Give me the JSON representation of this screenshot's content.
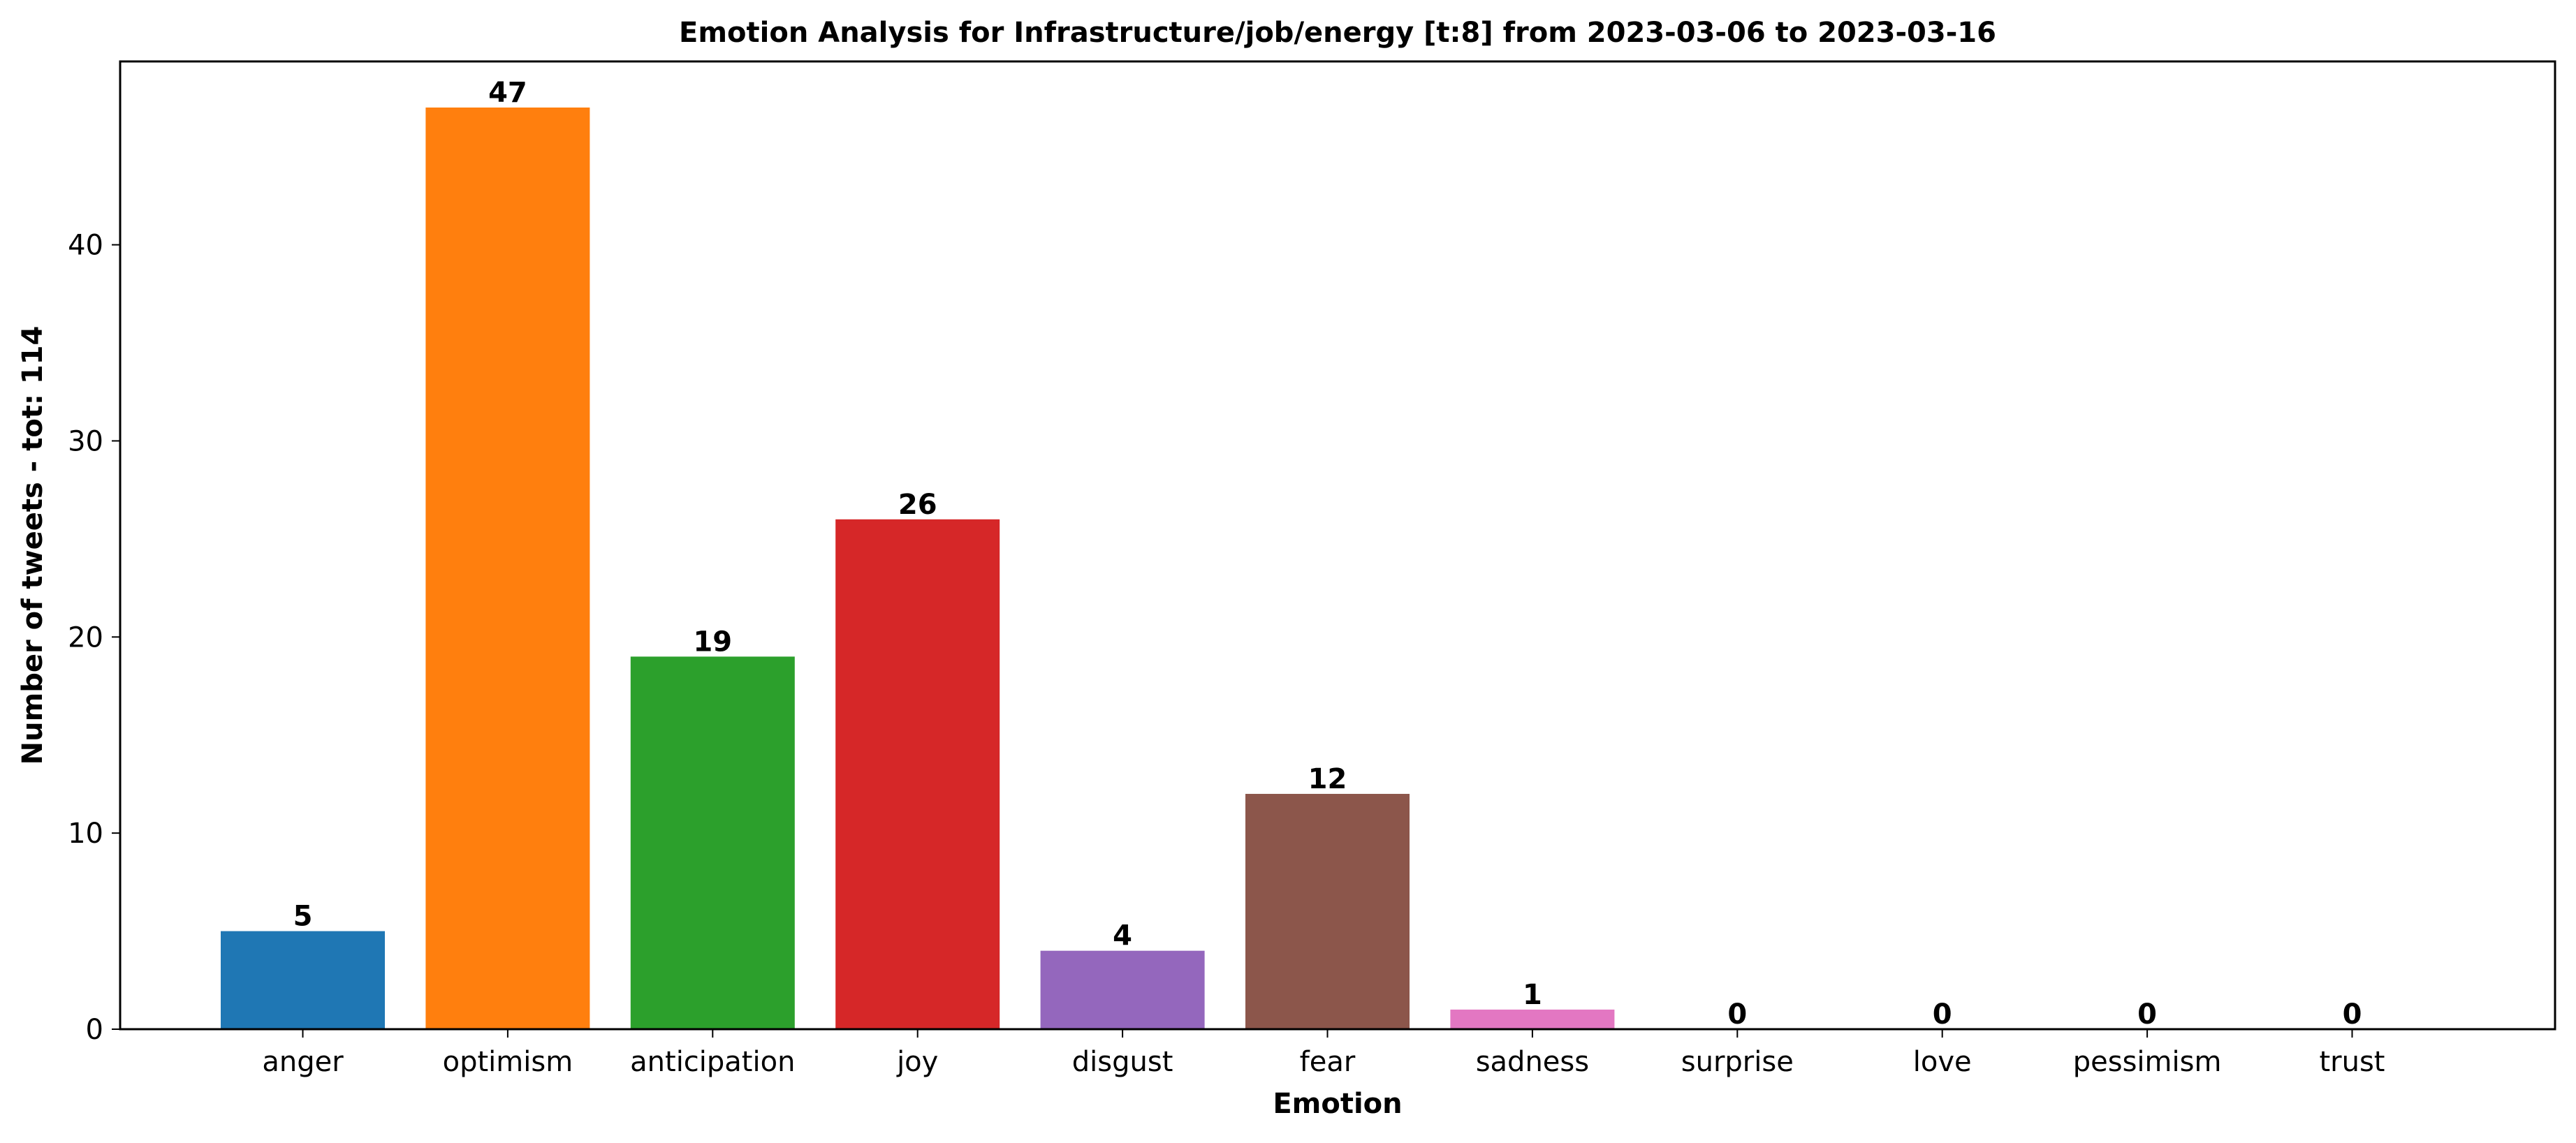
{
  "chart_data": {
    "type": "bar",
    "title": "Emotion Analysis for Infrastructure/job/energy [t:8] from 2023-03-06 to 2023-03-16",
    "xlabel": "Emotion",
    "ylabel": "Number of tweets - tot: 114",
    "categories": [
      "anger",
      "optimism",
      "anticipation",
      "joy",
      "disgust",
      "fear",
      "sadness",
      "surprise",
      "love",
      "pessimism",
      "trust"
    ],
    "values": [
      5,
      47,
      19,
      26,
      4,
      12,
      1,
      0,
      0,
      0,
      0
    ],
    "value_labels": [
      "5",
      "47",
      "19",
      "26",
      "4",
      "12",
      "1",
      "0",
      "0",
      "0",
      "0"
    ],
    "colors": [
      "#1f77b4",
      "#ff7f0e",
      "#2ca02c",
      "#d62728",
      "#9467bd",
      "#8c564b",
      "#e377c2",
      "#7f7f7f",
      "#bcbd22",
      "#17becf",
      "#1f77b4"
    ],
    "ylim": [
      0,
      49.35
    ],
    "yticks": [
      0,
      10,
      20,
      30,
      40
    ],
    "ytick_labels": [
      "0",
      "10",
      "20",
      "30",
      "40"
    ],
    "grid": false,
    "legend": false
  }
}
